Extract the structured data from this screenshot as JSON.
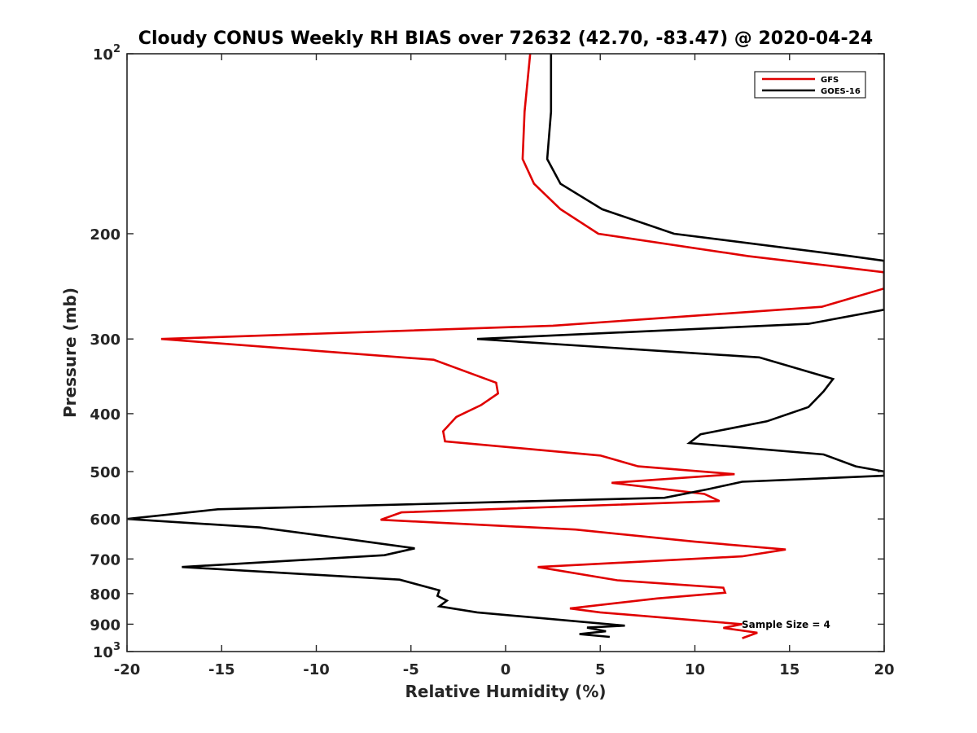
{
  "chart_data": {
    "type": "line",
    "title": "Cloudy CONUS Weekly RH BIAS over 72632 (42.70, -83.47) @ 2020-04-24",
    "xlabel": "Relative Humidity (%)",
    "ylabel": "Pressure (mb)",
    "xlim": [
      -20,
      20
    ],
    "ylim": [
      100,
      1000
    ],
    "y_scale": "log",
    "y_reversed": true,
    "grid": false,
    "legend_position": "top-right",
    "x_ticks": [
      -20,
      -15,
      -10,
      -5,
      0,
      5,
      10,
      15,
      20
    ],
    "x_tick_labels": [
      "-20",
      "-15",
      "-10",
      "-5",
      "0",
      "5",
      "10",
      "15",
      "20"
    ],
    "y_ticks": [
      100,
      200,
      300,
      400,
      500,
      600,
      700,
      800,
      900,
      1000
    ],
    "y_tick_labels": [
      {
        "base": "10",
        "exp": "2"
      },
      {
        "base": "200"
      },
      {
        "base": "300"
      },
      {
        "base": "400"
      },
      {
        "base": "500"
      },
      {
        "base": "600"
      },
      {
        "base": "700"
      },
      {
        "base": "800"
      },
      {
        "base": "900"
      },
      {
        "base": "10",
        "exp": "3"
      }
    ],
    "annotation": "Sample Size = 4",
    "series": [
      {
        "name": "GFS",
        "color": "#e00000",
        "points": [
          [
            1.3,
            100
          ],
          [
            1.0,
            125
          ],
          [
            0.9,
            150
          ],
          [
            1.5,
            165
          ],
          [
            2.9,
            182
          ],
          [
            4.9,
            200
          ],
          [
            12.8,
            218
          ],
          [
            20,
            232
          ],
          [
            20,
            247
          ],
          [
            16.7,
            265
          ],
          [
            2.5,
            285
          ],
          [
            -18.2,
            300
          ],
          [
            -3.8,
            325
          ],
          [
            -0.5,
            355
          ],
          [
            -0.4,
            370
          ],
          [
            -1.3,
            387
          ],
          [
            -2.6,
            405
          ],
          [
            -3.3,
            428
          ],
          [
            -3.2,
            445
          ],
          [
            5.0,
            470
          ],
          [
            7.0,
            490
          ],
          [
            12.1,
            505
          ],
          [
            5.6,
            522
          ],
          [
            10.5,
            545
          ],
          [
            11.3,
            560
          ],
          [
            -5.5,
            585
          ],
          [
            -6.6,
            602
          ],
          [
            3.7,
            625
          ],
          [
            10.0,
            655
          ],
          [
            14.8,
            675
          ],
          [
            12.5,
            693
          ],
          [
            1.7,
            722
          ],
          [
            5.9,
            760
          ],
          [
            11.5,
            782
          ],
          [
            11.6,
            797
          ],
          [
            8.0,
            815
          ],
          [
            3.4,
            847
          ],
          [
            5.0,
            860
          ],
          [
            12.5,
            900
          ],
          [
            11.5,
            913
          ],
          [
            13.3,
            930
          ],
          [
            12.5,
            950
          ]
        ]
      },
      {
        "name": "GOES-16",
        "color": "#000000",
        "points": [
          [
            2.4,
            100
          ],
          [
            2.4,
            125
          ],
          [
            2.2,
            150
          ],
          [
            2.9,
            165
          ],
          [
            5.1,
            182
          ],
          [
            8.9,
            200
          ],
          [
            18.2,
            218
          ],
          [
            20,
            222
          ],
          [
            20,
            268
          ],
          [
            16.0,
            283
          ],
          [
            -1.5,
            300
          ],
          [
            13.4,
            322
          ],
          [
            17.3,
            350
          ],
          [
            16.8,
            367
          ],
          [
            16.0,
            390
          ],
          [
            13.8,
            412
          ],
          [
            10.3,
            433
          ],
          [
            9.7,
            448
          ],
          [
            16.8,
            468
          ],
          [
            18.5,
            490
          ],
          [
            20,
            500
          ],
          [
            20,
            508
          ],
          [
            12.5,
            520
          ],
          [
            10.7,
            535
          ],
          [
            8.4,
            553
          ],
          [
            -15.2,
            578
          ],
          [
            -20,
            600
          ],
          [
            -13.0,
            620
          ],
          [
            -8.1,
            650
          ],
          [
            -4.8,
            672
          ],
          [
            -6.4,
            690
          ],
          [
            -17.1,
            722
          ],
          [
            -5.6,
            758
          ],
          [
            -3.5,
            790
          ],
          [
            -3.6,
            807
          ],
          [
            -3.1,
            822
          ],
          [
            -3.5,
            840
          ],
          [
            -1.5,
            860
          ],
          [
            6.3,
            905
          ],
          [
            4.3,
            912
          ],
          [
            5.3,
            925
          ],
          [
            3.9,
            935
          ],
          [
            5.5,
            945
          ]
        ]
      }
    ]
  }
}
